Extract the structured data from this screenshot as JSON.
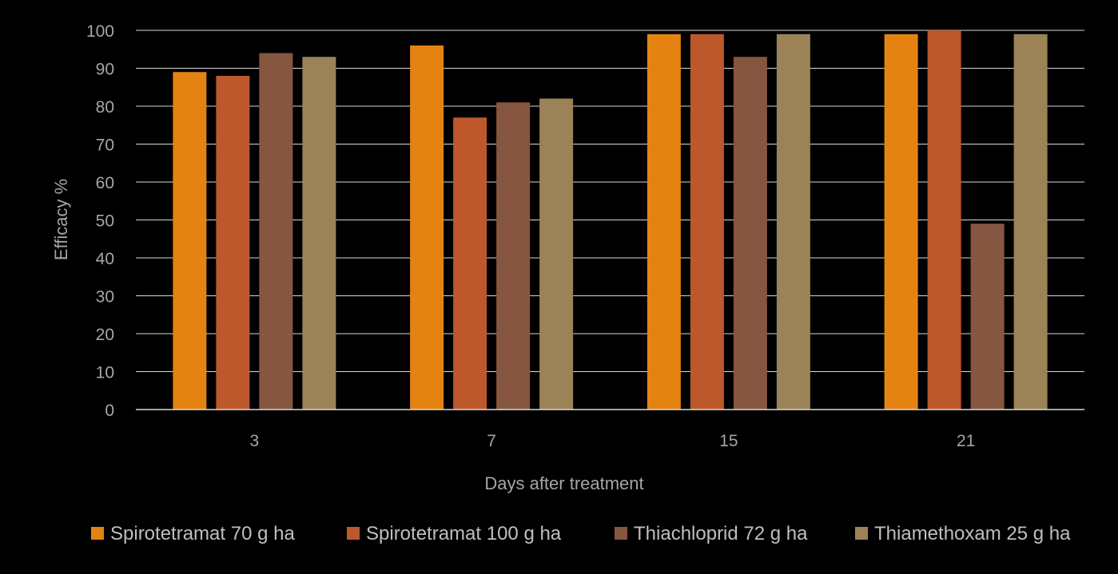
{
  "chart_data": {
    "type": "bar",
    "title": "",
    "xlabel": "Days after treatment",
    "ylabel": "Efficacy %",
    "ylim": [
      0,
      100
    ],
    "yticks": [
      0,
      10,
      20,
      30,
      40,
      50,
      60,
      70,
      80,
      90,
      100
    ],
    "grid": true,
    "legend_position": "bottom",
    "categories": [
      "3",
      "7",
      "15",
      "21"
    ],
    "series": [
      {
        "name": "Spirotetramat 70 g ha",
        "color": "#e48312",
        "values": [
          89,
          96,
          99,
          99
        ]
      },
      {
        "name": "Spirotetramat 100 g ha",
        "color": "#bd582c",
        "values": [
          88,
          77,
          99,
          100
        ]
      },
      {
        "name": "Thiachloprid 72 g ha",
        "color": "#865640",
        "values": [
          94,
          81,
          93,
          49
        ]
      },
      {
        "name": "Thiamethoxam 25 g ha",
        "color": "#9b8357",
        "values": [
          93,
          82,
          99,
          99
        ]
      }
    ]
  }
}
